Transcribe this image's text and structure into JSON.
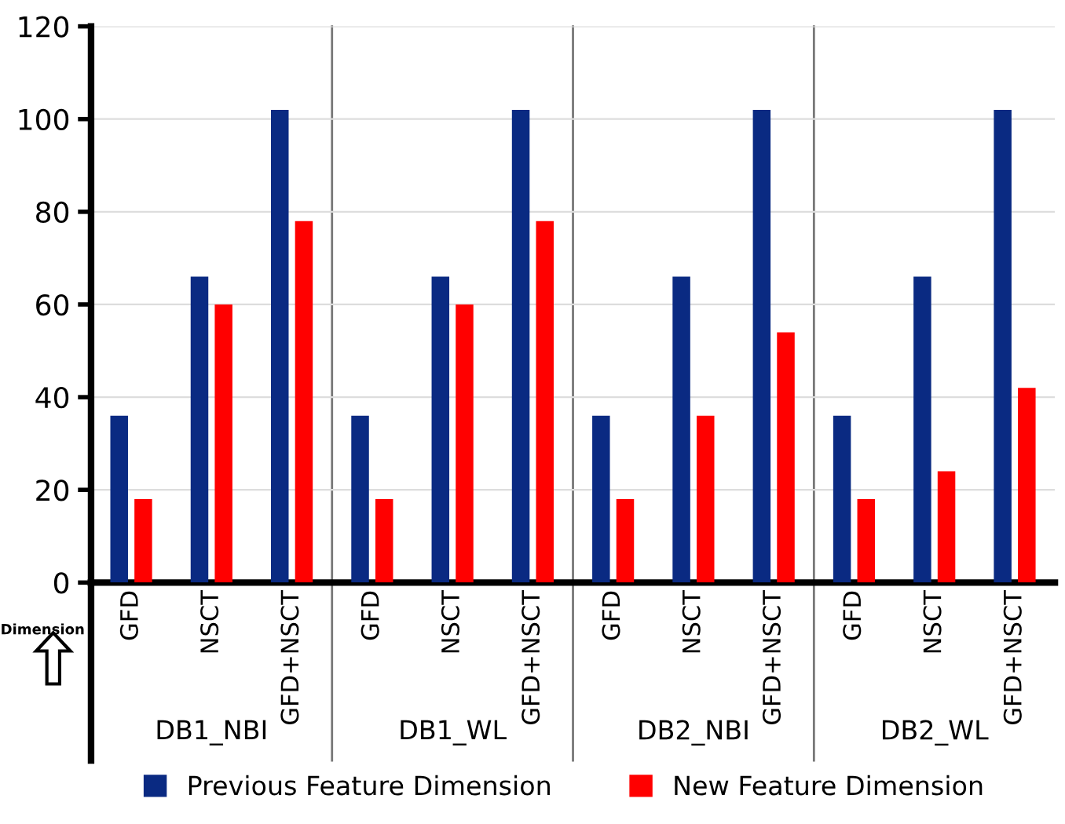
{
  "chart_data": {
    "type": "bar",
    "categories": [
      "GFD",
      "NSCT",
      "GFD+NSCT",
      "GFD",
      "NSCT",
      "GFD+NSCT",
      "GFD",
      "NSCT",
      "GFD+NSCT",
      "GFD",
      "NSCT",
      "GFD+NSCT"
    ],
    "series": [
      {
        "name": "Previous Feature Dimension",
        "color": "#0a2a82",
        "values": [
          36,
          66,
          102,
          36,
          66,
          102,
          36,
          66,
          102,
          36,
          66,
          102
        ]
      },
      {
        "name": "New Feature Dimension",
        "color": "#ff0000",
        "values": [
          18,
          60,
          78,
          18,
          60,
          78,
          18,
          36,
          54,
          18,
          24,
          42
        ]
      }
    ],
    "ylabel": "Dimension",
    "annotations": [
      "DB1_NBI",
      "DB1_WL",
      "DB2_NBI",
      "DB2_WL"
    ],
    "ylim": [
      0,
      120
    ],
    "yticks": [
      0,
      20,
      40,
      60,
      80,
      100,
      120
    ],
    "grid": "y",
    "legend": "bottom"
  }
}
